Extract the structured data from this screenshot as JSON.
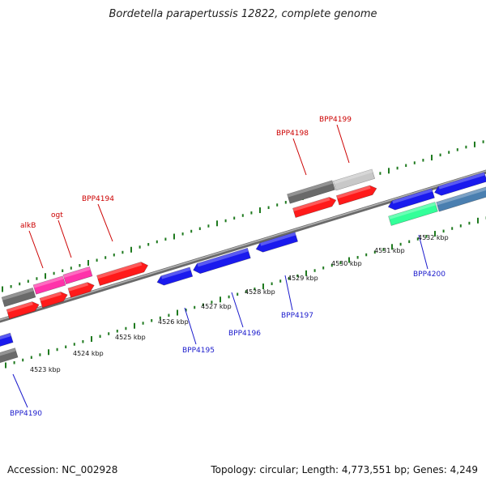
{
  "title": "Bordetella parapertussis 12822, complete genome",
  "footer": {
    "accession": "Accession: NC_002928",
    "topology": "Topology: circular; Length: 4,773,551 bp; Genes: 4,249"
  },
  "colors": {
    "background": "#ffffff",
    "backbone": "#8a8a8a",
    "tick": "#1f7a1f",
    "forward_label": "#cc0000",
    "reverse_label": "#1a1acc",
    "cds_forward": "#ff1a1a",
    "cds_reverse": "#1a1aee",
    "rna_gene": "#ff33aa",
    "gene_grey": "#6a6a6a",
    "gene_lightgrey": "#c8c8c8",
    "gene_green": "#33ff99",
    "gene_steel": "#4a7fb0"
  },
  "scale": {
    "unit": "kbp",
    "ticks": [
      {
        "label": "4523 kbp"
      },
      {
        "label": "4524 kbp"
      },
      {
        "label": "4525 kbp"
      },
      {
        "label": "4526 kbp"
      },
      {
        "label": "4527 kbp"
      },
      {
        "label": "4528 kbp"
      },
      {
        "label": "4529 kbp"
      },
      {
        "label": "4530 kbp"
      },
      {
        "label": "4531 kbp"
      },
      {
        "label": "4532 kbp"
      }
    ]
  },
  "forward_labels": [
    "alkB",
    "ogt",
    "BPP4194",
    "BPP4198",
    "BPP4199"
  ],
  "reverse_labels": [
    "BPP4190",
    "BPP4195",
    "BPP4196",
    "BPP4197",
    "BPP4200"
  ]
}
